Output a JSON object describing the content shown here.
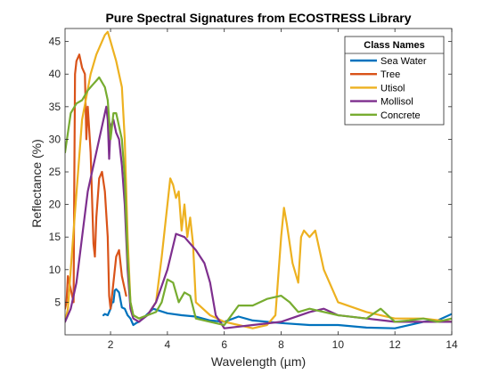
{
  "chart_data": {
    "type": "line",
    "title": "Pure Spectral Signatures from ECOSTRESS Library",
    "xlabel": "Wavelength  (µm)",
    "ylabel": "Reflectance (%)",
    "xlim": [
      0.4,
      14
    ],
    "ylim": [
      0,
      47
    ],
    "xticks": [
      2,
      4,
      6,
      8,
      10,
      12,
      14
    ],
    "yticks": [
      5,
      10,
      15,
      20,
      25,
      30,
      35,
      40,
      45
    ],
    "grid": false,
    "legend": {
      "title": "Class Names",
      "placement": "top-right"
    },
    "series": [
      {
        "name": "Sea Water",
        "color": "#0072BD",
        "x": [
          1.75,
          1.8,
          1.9,
          2.0,
          2.05,
          2.1,
          2.15,
          2.2,
          2.3,
          2.4,
          2.5,
          2.6,
          2.7,
          2.8,
          2.9,
          3.0,
          3.5,
          4.0,
          4.5,
          5.0,
          5.5,
          6.0,
          6.5,
          7.0,
          8.0,
          9.0,
          10.0,
          11.0,
          12.0,
          13.0,
          13.5,
          14.0
        ],
        "y": [
          3.0,
          3.2,
          3.0,
          4.0,
          5.0,
          5.0,
          6.8,
          7.0,
          6.5,
          4.2,
          4.0,
          3.0,
          2.5,
          1.5,
          1.8,
          2.0,
          4.0,
          3.3,
          3.0,
          2.8,
          2.2,
          2.0,
          2.8,
          2.2,
          1.8,
          1.5,
          1.5,
          1.1,
          1.0,
          2.0,
          2.2,
          3.2
        ]
      },
      {
        "name": "Tree",
        "color": "#D95319",
        "x": [
          0.4,
          0.45,
          0.5,
          0.55,
          0.6,
          0.65,
          0.7,
          0.72,
          0.75,
          0.8,
          0.9,
          1.0,
          1.1,
          1.15,
          1.2,
          1.3,
          1.4,
          1.45,
          1.5,
          1.6,
          1.7,
          1.8,
          1.9,
          1.95,
          2.0,
          2.1,
          2.2,
          2.3,
          2.4,
          2.5,
          2.55
        ],
        "y": [
          4.0,
          5.0,
          9.0,
          8.0,
          7.0,
          6.0,
          5.0,
          20.0,
          40.0,
          42.0,
          43.0,
          41.0,
          40.0,
          30.0,
          35.0,
          28.0,
          14.0,
          12.0,
          18.0,
          24.0,
          25.0,
          22.0,
          15.0,
          6.0,
          4.0,
          8.0,
          12.0,
          13.0,
          9.0,
          7.0,
          6.0
        ]
      },
      {
        "name": "Utisol",
        "color": "#EDB120",
        "x": [
          0.4,
          0.5,
          0.7,
          1.0,
          1.3,
          1.5,
          1.7,
          1.8,
          1.9,
          2.0,
          2.2,
          2.4,
          2.5,
          2.6,
          2.7,
          2.8,
          3.0,
          3.3,
          3.6,
          3.8,
          4.0,
          4.1,
          4.2,
          4.3,
          4.4,
          4.5,
          4.6,
          4.7,
          4.8,
          4.9,
          5.0,
          5.5,
          6.0,
          6.5,
          7.0,
          7.5,
          7.8,
          8.0,
          8.1,
          8.2,
          8.4,
          8.6,
          8.7,
          8.8,
          9.0,
          9.2,
          9.5,
          10.0,
          11.0,
          12.0,
          13.0,
          14.0
        ],
        "y": [
          2.0,
          4.0,
          16.0,
          33.0,
          40.0,
          43.0,
          45.0,
          46.0,
          46.5,
          45.0,
          42.0,
          38.0,
          30.0,
          15.0,
          5.0,
          3.0,
          2.5,
          3.0,
          5.0,
          12.0,
          20.0,
          24.0,
          23.0,
          21.0,
          22.0,
          16.0,
          20.0,
          15.0,
          18.0,
          14.0,
          5.0,
          3.0,
          2.0,
          1.5,
          1.0,
          1.5,
          3.0,
          15.0,
          19.5,
          17.0,
          11.0,
          8.0,
          15.0,
          16.0,
          15.0,
          16.0,
          10.0,
          5.0,
          3.5,
          2.5,
          2.5,
          2.0
        ]
      },
      {
        "name": "Mollisol",
        "color": "#7E2F8E",
        "x": [
          0.4,
          0.6,
          0.8,
          1.0,
          1.2,
          1.4,
          1.6,
          1.7,
          1.8,
          1.85,
          1.9,
          1.95,
          2.0,
          2.1,
          2.2,
          2.3,
          2.4,
          2.5,
          2.6,
          2.7,
          2.8,
          3.0,
          3.3,
          3.6,
          4.0,
          4.3,
          4.6,
          5.0,
          5.3,
          5.5,
          5.7,
          6.0,
          7.0,
          8.0,
          9.0,
          9.5,
          10.0,
          11.0,
          12.0,
          13.0,
          14.0
        ],
        "y": [
          2.0,
          4.0,
          8.0,
          15.0,
          22.0,
          26.0,
          30.0,
          32.0,
          34.0,
          35.0,
          33.0,
          27.0,
          32.0,
          33.0,
          31.0,
          30.0,
          26.0,
          20.0,
          10.0,
          4.0,
          2.5,
          2.0,
          3.0,
          5.0,
          10.0,
          15.5,
          15.0,
          13.0,
          11.0,
          8.0,
          3.0,
          1.0,
          1.5,
          2.0,
          3.5,
          4.0,
          3.0,
          2.5,
          2.0,
          2.0,
          2.0
        ]
      },
      {
        "name": "Concrete",
        "color": "#77AC30",
        "x": [
          0.4,
          0.5,
          0.6,
          0.8,
          1.0,
          1.2,
          1.4,
          1.5,
          1.6,
          1.8,
          1.9,
          2.0,
          2.1,
          2.2,
          2.3,
          2.4,
          2.5,
          2.6,
          2.7,
          2.8,
          3.0,
          3.3,
          3.6,
          3.8,
          4.0,
          4.2,
          4.4,
          4.6,
          4.8,
          5.0,
          5.5,
          6.0,
          6.5,
          7.0,
          7.5,
          8.0,
          8.3,
          8.6,
          9.0,
          10.0,
          11.0,
          11.5,
          12.0,
          12.5,
          13.0,
          13.5,
          14.0
        ],
        "y": [
          28.0,
          31.0,
          34.0,
          35.5,
          36.0,
          37.5,
          38.5,
          39.0,
          39.5,
          38.0,
          36.0,
          30.0,
          34.0,
          34.0,
          32.0,
          30.0,
          24.0,
          12.0,
          5.0,
          3.0,
          2.5,
          3.0,
          3.5,
          5.0,
          8.5,
          8.0,
          5.0,
          6.5,
          6.0,
          2.5,
          2.0,
          1.5,
          4.5,
          4.5,
          5.5,
          6.0,
          5.0,
          3.5,
          4.0,
          3.0,
          2.5,
          4.0,
          2.0,
          2.2,
          2.5,
          2.0,
          2.5
        ]
      }
    ]
  }
}
